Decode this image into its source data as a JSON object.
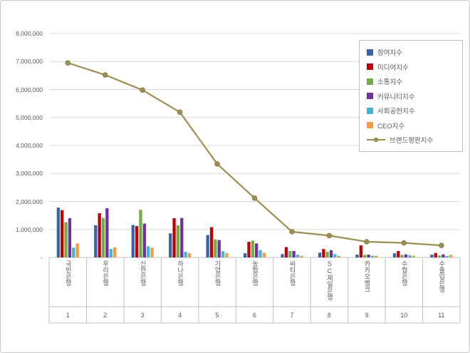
{
  "chart_data": {
    "type": "bar",
    "subtype": "bar-line-combo",
    "title": "",
    "xlabel": "",
    "ylabel": "",
    "ylim": [
      0,
      8000000
    ],
    "ytick_step": 1000000,
    "ytick_labels": [
      "-",
      "1,000,000",
      "2,000,000",
      "3,000,000",
      "4,000,000",
      "5,000,000",
      "6,000,000",
      "7,000,000",
      "8,000,000"
    ],
    "grid": true,
    "legend_position": "right-top",
    "categories": [
      "국민은행",
      "우리은행",
      "신한은행",
      "하나은행",
      "기업은행",
      "농협은행",
      "씨티은행",
      "SC제일은행",
      "카카오뱅크",
      "수협은행",
      "수출입은행"
    ],
    "category_numbers": [
      "1",
      "2",
      "3",
      "4",
      "5",
      "6",
      "7",
      "8",
      "9",
      "10",
      "11"
    ],
    "series": [
      {
        "name": "참여지수",
        "type": "bar",
        "color": "#3465a8",
        "values": [
          1780000,
          1150000,
          1160000,
          860000,
          800000,
          150000,
          120000,
          170000,
          100000,
          150000,
          100000
        ]
      },
      {
        "name": "미디어지수",
        "type": "bar",
        "color": "#c00000",
        "values": [
          1690000,
          1580000,
          1120000,
          1400000,
          1080000,
          560000,
          370000,
          300000,
          430000,
          230000,
          160000
        ]
      },
      {
        "name": "소통지수",
        "type": "bar",
        "color": "#70ad47",
        "values": [
          1260000,
          1410000,
          1700000,
          1150000,
          650000,
          600000,
          230000,
          200000,
          90000,
          90000,
          70000
        ]
      },
      {
        "name": "커뮤니티지수",
        "type": "bar",
        "color": "#7030a0",
        "values": [
          1400000,
          1760000,
          1210000,
          1410000,
          620000,
          500000,
          230000,
          260000,
          100000,
          110000,
          110000
        ]
      },
      {
        "name": "사회공헌지수",
        "type": "bar",
        "color": "#3eb6d4",
        "values": [
          350000,
          300000,
          400000,
          200000,
          220000,
          260000,
          100000,
          120000,
          60000,
          80000,
          50000
        ]
      },
      {
        "name": "CEO지수",
        "type": "bar",
        "color": "#f59a40",
        "values": [
          500000,
          360000,
          350000,
          150000,
          150000,
          160000,
          60000,
          60000,
          60000,
          60000,
          90000
        ]
      },
      {
        "name": "브랜드평판지수",
        "type": "line",
        "color": "#9c8f52",
        "values": [
          6950000,
          6520000,
          5980000,
          5190000,
          3340000,
          2120000,
          920000,
          780000,
          560000,
          520000,
          430000
        ]
      }
    ],
    "colors": {
      "gridline": "#d9d9d9",
      "axis_table_line": "#bfbfbf",
      "axis_text": "#595959",
      "background": "#ffffff",
      "frame_border": "#c9c9c9"
    }
  }
}
